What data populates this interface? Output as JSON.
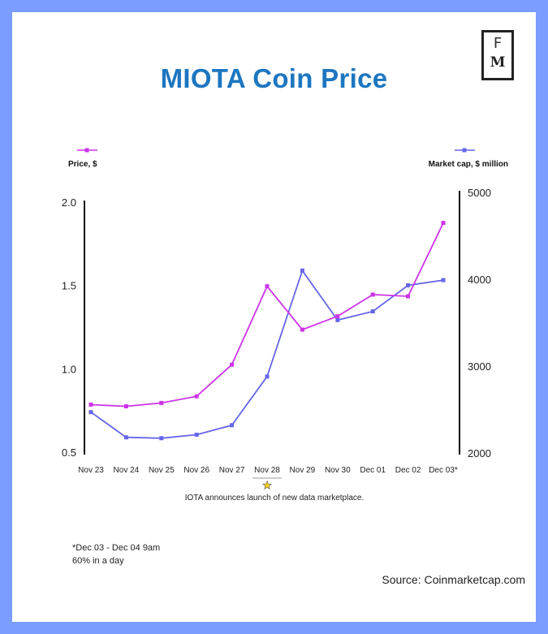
{
  "title": "MIOTA Coin Price",
  "logo": {
    "top": "F",
    "bottom": "M"
  },
  "legend": {
    "price_label": "Price, $",
    "cap_label": "Market cap, $ million"
  },
  "annotation": "IOTA announces launch of new data marketplace.",
  "footnote": {
    "line1": "*Dec 03 - Dec 04 9am",
    "line2": "60% in a day"
  },
  "source": "Source: Coinmarketcap.com",
  "colors": {
    "price": "#cc33e8",
    "cap": "#6666e8",
    "title": "#1c76c0",
    "border": "#7b9dff",
    "star": "#f2d024"
  },
  "chart_data": {
    "type": "line",
    "categories": [
      "Nov 23",
      "Nov 24",
      "Nov 25",
      "Nov 26",
      "Nov 27",
      "Nov 28",
      "Nov 29",
      "Nov 30",
      "Dec 01",
      "Dec 02",
      "Dec 03*"
    ],
    "highlight_category": "Nov 28",
    "series": [
      {
        "name": "Price, $",
        "axis": "left",
        "values": [
          0.79,
          0.78,
          0.8,
          0.84,
          1.03,
          1.5,
          1.24,
          1.32,
          1.45,
          1.44,
          1.88
        ]
      },
      {
        "name": "Market cap, $ million",
        "axis": "right",
        "values": [
          2470,
          2180,
          2170,
          2210,
          2320,
          2880,
          4100,
          3530,
          3630,
          3930,
          3990
        ]
      }
    ],
    "left_axis": {
      "ticks": [
        "2.0",
        "1.5",
        "1.0",
        "0.5"
      ],
      "ylim": [
        0.5,
        2.0
      ]
    },
    "right_axis": {
      "ticks": [
        "5000",
        "4000",
        "3000",
        "2000"
      ],
      "ylim": [
        2000,
        5000
      ]
    },
    "grid": false,
    "legend_position": "top"
  }
}
